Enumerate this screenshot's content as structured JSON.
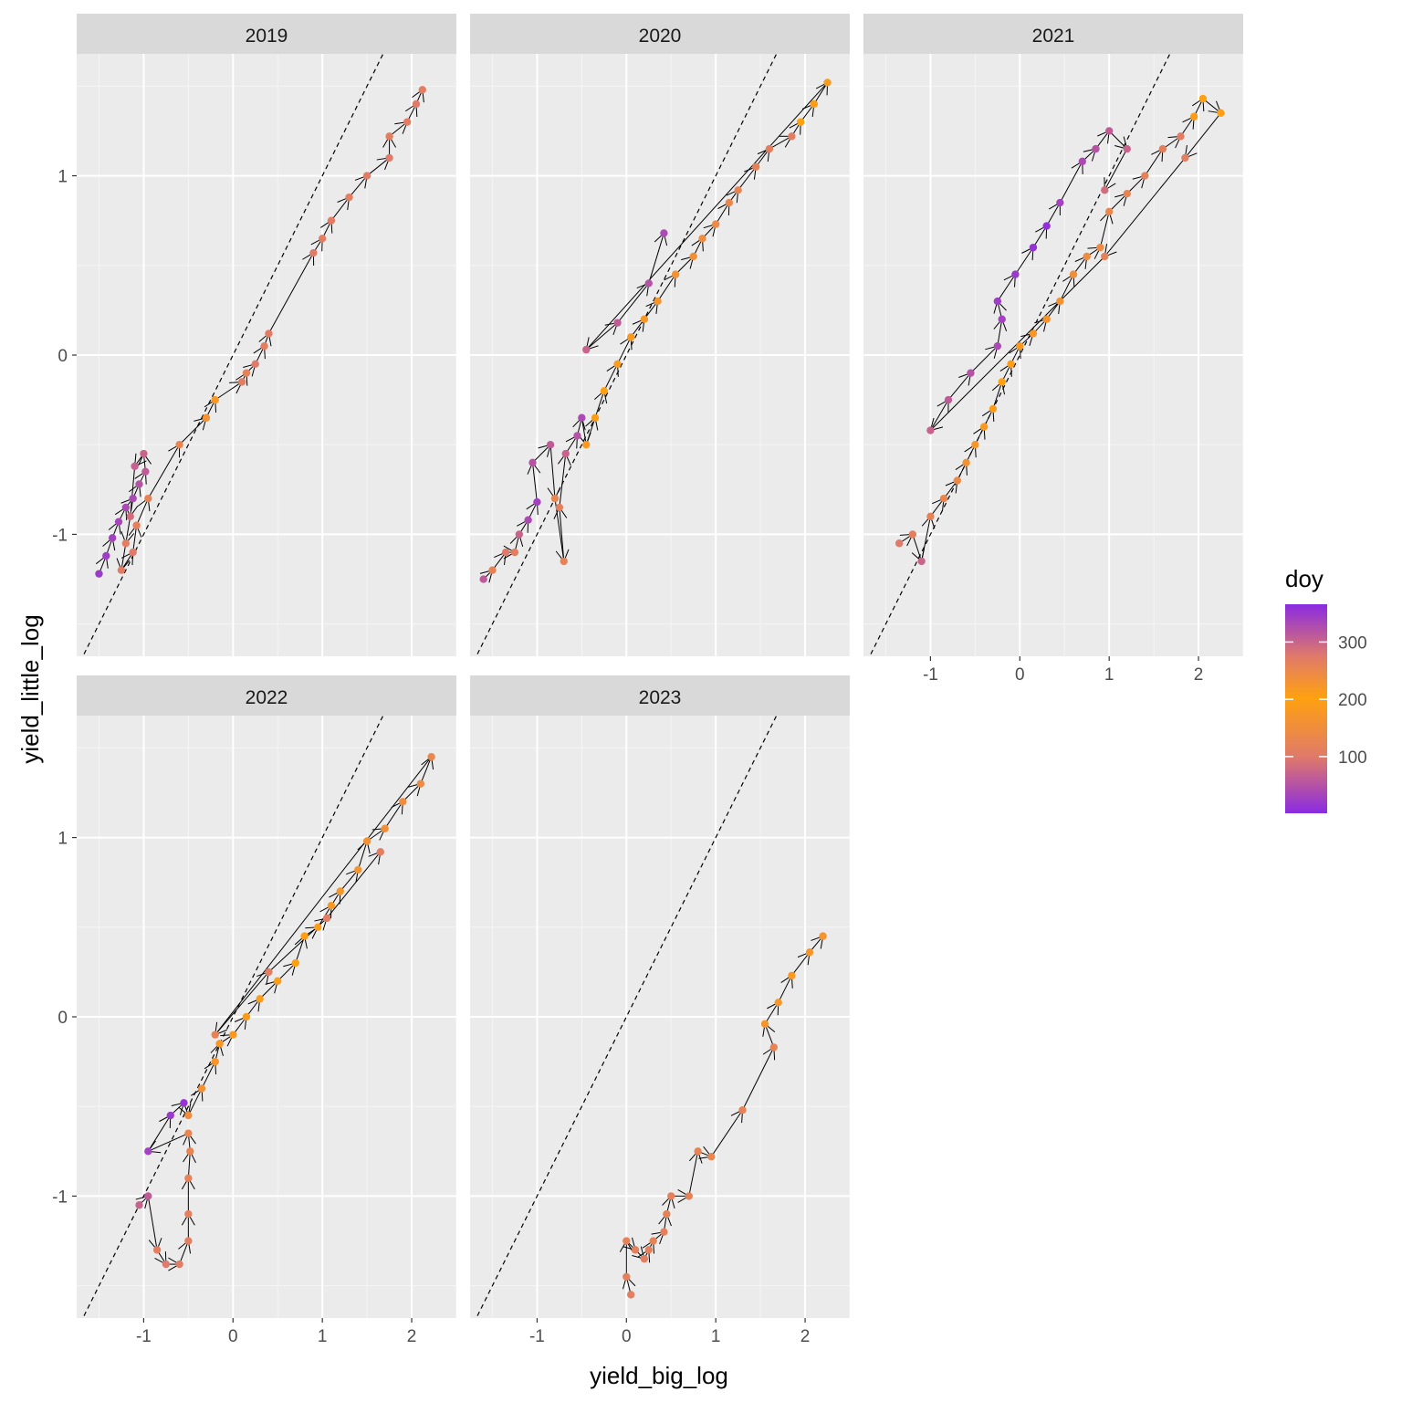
{
  "chart_data": {
    "type": "scatter",
    "subtype": "faceted path + scatter with arrows",
    "xlabel": "yield_big_log",
    "ylabel": "yield_little_log",
    "xlim": [
      -1.75,
      2.5
    ],
    "ylim": [
      -1.68,
      1.68
    ],
    "x_ticks": [
      -1,
      0,
      1,
      2
    ],
    "y_ticks": [
      -1,
      0,
      1
    ],
    "reference_line": {
      "style": "dashed",
      "slope": 1,
      "intercept": 0
    },
    "grid": true,
    "legend": {
      "title": "doy",
      "ticks": [
        100,
        200,
        300
      ],
      "range": [
        1,
        366
      ],
      "colors": {
        "low": "#8a2be2",
        "mid_low": "#e07a6a",
        "mid": "#ffa10f",
        "high": "#8a2be2"
      },
      "position": "right"
    },
    "facets": [
      {
        "label": "2019",
        "points": [
          [
            -1.5,
            -1.22,
            20
          ],
          [
            -1.42,
            -1.12,
            25
          ],
          [
            -1.35,
            -1.02,
            30
          ],
          [
            -1.28,
            -0.93,
            35
          ],
          [
            -1.2,
            -0.85,
            40
          ],
          [
            -1.12,
            -0.8,
            330
          ],
          [
            -1.05,
            -0.72,
            320
          ],
          [
            -0.98,
            -0.65,
            310
          ],
          [
            -1.0,
            -0.55,
            300
          ],
          [
            -1.1,
            -0.62,
            305
          ],
          [
            -1.15,
            -0.9,
            290
          ],
          [
            -1.2,
            -1.05,
            110
          ],
          [
            -1.25,
            -1.2,
            105
          ],
          [
            -1.12,
            -1.1,
            100
          ],
          [
            -1.08,
            -0.95,
            115
          ],
          [
            -0.95,
            -0.8,
            120
          ],
          [
            -0.6,
            -0.5,
            130
          ],
          [
            -0.3,
            -0.35,
            160
          ],
          [
            -0.2,
            -0.25,
            180
          ],
          [
            0.1,
            -0.15,
            110
          ],
          [
            0.15,
            -0.1,
            120
          ],
          [
            0.25,
            -0.05,
            100
          ],
          [
            0.35,
            0.05,
            110
          ],
          [
            0.4,
            0.12,
            105
          ],
          [
            0.9,
            0.57,
            100
          ],
          [
            1.0,
            0.65,
            110
          ],
          [
            1.1,
            0.75,
            105
          ],
          [
            1.3,
            0.88,
            110
          ],
          [
            1.5,
            1.0,
            105
          ],
          [
            1.75,
            1.1,
            100
          ],
          [
            1.75,
            1.22,
            110
          ],
          [
            1.95,
            1.3,
            105
          ],
          [
            2.05,
            1.4,
            100
          ],
          [
            2.12,
            1.48,
            110
          ]
        ]
      },
      {
        "label": "2020",
        "points": [
          [
            -1.6,
            -1.25,
            60
          ],
          [
            -1.5,
            -1.2,
            120
          ],
          [
            -1.35,
            -1.1,
            100
          ],
          [
            -1.25,
            -1.1,
            110
          ],
          [
            -1.2,
            -1.0,
            300
          ],
          [
            -1.1,
            -0.92,
            330
          ],
          [
            -1.0,
            -0.82,
            340
          ],
          [
            -1.05,
            -0.6,
            320
          ],
          [
            -0.85,
            -0.5,
            310
          ],
          [
            -0.8,
            -0.8,
            130
          ],
          [
            -0.7,
            -1.15,
            120
          ],
          [
            -0.75,
            -0.85,
            115
          ],
          [
            -0.68,
            -0.55,
            300
          ],
          [
            -0.55,
            -0.45,
            320
          ],
          [
            -0.5,
            -0.35,
            330
          ],
          [
            -0.45,
            -0.5,
            180
          ],
          [
            -0.35,
            -0.35,
            190
          ],
          [
            -0.25,
            -0.2,
            200
          ],
          [
            -0.1,
            -0.05,
            210
          ],
          [
            0.05,
            0.1,
            215
          ],
          [
            0.2,
            0.2,
            220
          ],
          [
            0.35,
            0.3,
            225
          ],
          [
            0.55,
            0.45,
            230
          ],
          [
            0.75,
            0.55,
            235
          ],
          [
            0.85,
            0.65,
            240
          ],
          [
            1.0,
            0.73,
            245
          ],
          [
            1.15,
            0.85,
            250
          ],
          [
            1.25,
            0.92,
            255
          ],
          [
            1.45,
            1.05,
            260
          ],
          [
            1.6,
            1.15,
            265
          ],
          [
            1.85,
            1.22,
            270
          ],
          [
            1.95,
            1.3,
            200
          ],
          [
            2.1,
            1.4,
            190
          ],
          [
            2.25,
            1.52,
            185
          ],
          [
            -0.45,
            0.03,
            300
          ],
          [
            -0.1,
            0.18,
            310
          ],
          [
            0.25,
            0.4,
            320
          ],
          [
            0.42,
            0.68,
            330
          ]
        ]
      },
      {
        "label": "2021",
        "points": [
          [
            -1.35,
            -1.05,
            100
          ],
          [
            -1.2,
            -1.0,
            110
          ],
          [
            -1.1,
            -1.15,
            300
          ],
          [
            -1.0,
            -0.9,
            120
          ],
          [
            -0.85,
            -0.8,
            130
          ],
          [
            -0.7,
            -0.7,
            140
          ],
          [
            -0.6,
            -0.6,
            160
          ],
          [
            -0.5,
            -0.5,
            170
          ],
          [
            -0.4,
            -0.4,
            180
          ],
          [
            -0.3,
            -0.3,
            190
          ],
          [
            -0.2,
            -0.15,
            200
          ],
          [
            -0.1,
            -0.05,
            210
          ],
          [
            0.0,
            0.05,
            215
          ],
          [
            0.15,
            0.12,
            220
          ],
          [
            0.3,
            0.2,
            225
          ],
          [
            0.45,
            0.3,
            230
          ],
          [
            0.6,
            0.45,
            235
          ],
          [
            0.75,
            0.55,
            240
          ],
          [
            0.9,
            0.6,
            245
          ],
          [
            1.0,
            0.8,
            250
          ],
          [
            1.2,
            0.9,
            255
          ],
          [
            1.4,
            1.0,
            260
          ],
          [
            1.6,
            1.15,
            265
          ],
          [
            1.8,
            1.22,
            270
          ],
          [
            1.95,
            1.33,
            210
          ],
          [
            2.05,
            1.43,
            200
          ],
          [
            2.25,
            1.35,
            195
          ],
          [
            1.85,
            1.1,
            110
          ],
          [
            0.95,
            0.55,
            120
          ],
          [
            -1.0,
            -0.42,
            300
          ],
          [
            -0.8,
            -0.25,
            310
          ],
          [
            -0.55,
            -0.1,
            320
          ],
          [
            -0.25,
            0.05,
            330
          ],
          [
            -0.2,
            0.2,
            340
          ],
          [
            -0.25,
            0.3,
            345
          ],
          [
            -0.05,
            0.45,
            350
          ],
          [
            0.15,
            0.6,
            355
          ],
          [
            0.3,
            0.72,
            360
          ],
          [
            0.45,
            0.85,
            340
          ],
          [
            0.7,
            1.08,
            330
          ],
          [
            0.85,
            1.15,
            320
          ],
          [
            1.0,
            1.25,
            310
          ],
          [
            1.2,
            1.15,
            300
          ],
          [
            0.95,
            0.92,
            290
          ]
        ]
      },
      {
        "label": "2022",
        "points": [
          [
            -1.05,
            -1.05,
            300
          ],
          [
            -0.95,
            -1.0,
            310
          ],
          [
            -0.85,
            -1.3,
            110
          ],
          [
            -0.75,
            -1.38,
            100
          ],
          [
            -0.6,
            -1.38,
            105
          ],
          [
            -0.5,
            -1.25,
            110
          ],
          [
            -0.5,
            -1.1,
            115
          ],
          [
            -0.5,
            -0.9,
            120
          ],
          [
            -0.48,
            -0.75,
            125
          ],
          [
            -0.5,
            -0.65,
            130
          ],
          [
            -0.95,
            -0.75,
            340
          ],
          [
            -0.7,
            -0.55,
            350
          ],
          [
            -0.55,
            -0.48,
            355
          ],
          [
            -0.5,
            -0.55,
            150
          ],
          [
            -0.35,
            -0.4,
            160
          ],
          [
            -0.2,
            -0.25,
            170
          ],
          [
            -0.15,
            -0.15,
            175
          ],
          [
            0.0,
            -0.1,
            180
          ],
          [
            0.15,
            0.0,
            185
          ],
          [
            0.3,
            0.1,
            190
          ],
          [
            0.5,
            0.2,
            195
          ],
          [
            0.7,
            0.3,
            200
          ],
          [
            0.8,
            0.45,
            205
          ],
          [
            0.95,
            0.5,
            210
          ],
          [
            1.1,
            0.62,
            215
          ],
          [
            1.2,
            0.7,
            220
          ],
          [
            1.4,
            0.82,
            225
          ],
          [
            1.5,
            0.98,
            230
          ],
          [
            1.7,
            1.05,
            235
          ],
          [
            1.9,
            1.2,
            240
          ],
          [
            2.1,
            1.3,
            245
          ],
          [
            2.22,
            1.45,
            250
          ],
          [
            -0.2,
            -0.1,
            120
          ],
          [
            0.4,
            0.25,
            110
          ],
          [
            1.05,
            0.55,
            105
          ],
          [
            1.65,
            0.92,
            110
          ]
        ]
      },
      {
        "label": "2023",
        "points": [
          [
            0.05,
            -1.55,
            110
          ],
          [
            0.0,
            -1.45,
            115
          ],
          [
            0.0,
            -1.25,
            120
          ],
          [
            0.1,
            -1.3,
            115
          ],
          [
            0.2,
            -1.35,
            110
          ],
          [
            0.25,
            -1.3,
            115
          ],
          [
            0.3,
            -1.25,
            120
          ],
          [
            0.42,
            -1.2,
            115
          ],
          [
            0.45,
            -1.1,
            120
          ],
          [
            0.5,
            -1.0,
            115
          ],
          [
            0.7,
            -1.0,
            120
          ],
          [
            0.8,
            -0.75,
            125
          ],
          [
            0.95,
            -0.78,
            130
          ],
          [
            1.3,
            -0.52,
            120
          ],
          [
            1.65,
            -0.17,
            125
          ],
          [
            1.55,
            -0.04,
            170
          ],
          [
            1.7,
            0.08,
            175
          ],
          [
            1.85,
            0.23,
            180
          ],
          [
            2.05,
            0.36,
            170
          ],
          [
            2.2,
            0.45,
            165
          ]
        ]
      }
    ]
  }
}
